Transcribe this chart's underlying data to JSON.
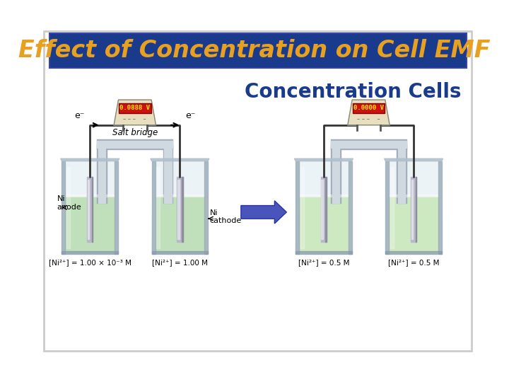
{
  "title": "Effect of Concentration on Cell EMF",
  "subtitle": "Concentration Cells",
  "title_bg_color": "#1a3a8c",
  "title_text_color": "#e8a020",
  "subtitle_text_color": "#1a3a8c",
  "main_bg_color": "#ffffff",
  "slide_bg_color": "#f0f0f4",
  "title_fontsize": 24,
  "subtitle_fontsize": 20,
  "left_voltage": "0.0888 V",
  "right_voltage": "0.0000 V",
  "left_conc_labels": [
    "[Ni²⁺] = 1.00 × 10⁻³ M",
    "[Ni²⁺] = 1.00 M"
  ],
  "right_conc_labels": [
    "[Ni²⁺] = 0.5 M",
    "[Ni²⁺] = 0.5 M"
  ],
  "left_anode_label": "Ni\nanode",
  "left_cathode_label": "Ni\ncathode",
  "salt_bridge_label": "Salt bridge",
  "arrow_color": "#4a55bb",
  "beaker_liquid_color_left": "#b8ddb0",
  "beaker_liquid_color_right": "#c8e8b8",
  "wire_color": "#333333",
  "electrode_color": "#b0b0b8",
  "saltbridge_color": "#d0d8e0",
  "voltmeter_body_color": "#e8dfc0",
  "voltmeter_display_color": "#cc1111",
  "voltmeter_text_color": "#ffee00"
}
